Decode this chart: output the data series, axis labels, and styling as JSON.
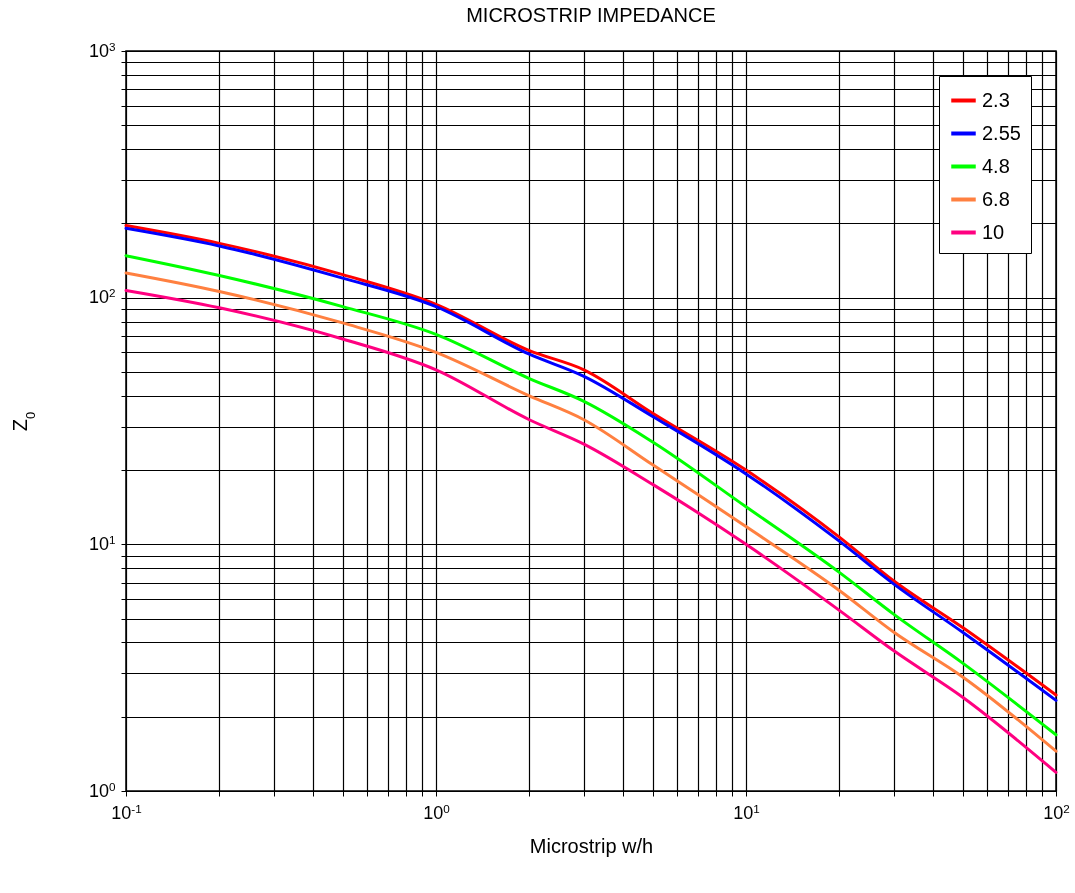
{
  "chart_data": {
    "type": "line",
    "title": "MICROSTRIP IMPEDANCE",
    "xlabel": "Microstrip w/h",
    "ylabel": "Z$_{0}$",
    "log": "xy",
    "grid": true,
    "legend": "top right",
    "marker": "none",
    "line_style": "solid",
    "xlim": [
      0.1,
      100
    ],
    "ylim": [
      1,
      1000
    ],
    "xticks": [
      {
        "value": 0.1,
        "label": "10$^{-1}$"
      },
      {
        "value": 0.2,
        "label": null
      },
      {
        "value": 0.3,
        "label": null
      },
      {
        "value": 0.4,
        "label": null
      },
      {
        "value": 0.5,
        "label": null
      },
      {
        "value": 0.6,
        "label": null
      },
      {
        "value": 0.7,
        "label": null
      },
      {
        "value": 0.8,
        "label": null
      },
      {
        "value": 0.9,
        "label": null
      },
      {
        "value": 1,
        "label": "10$^{0}$"
      },
      {
        "value": 2,
        "label": null
      },
      {
        "value": 3,
        "label": null
      },
      {
        "value": 4,
        "label": null
      },
      {
        "value": 5,
        "label": null
      },
      {
        "value": 6,
        "label": null
      },
      {
        "value": 7,
        "label": null
      },
      {
        "value": 8,
        "label": null
      },
      {
        "value": 9,
        "label": null
      },
      {
        "value": 10,
        "label": "10$^{1}$"
      },
      {
        "value": 20,
        "label": null
      },
      {
        "value": 30,
        "label": null
      },
      {
        "value": 40,
        "label": null
      },
      {
        "value": 50,
        "label": null
      },
      {
        "value": 60,
        "label": null
      },
      {
        "value": 70,
        "label": null
      },
      {
        "value": 80,
        "label": null
      },
      {
        "value": 90,
        "label": null
      },
      {
        "value": 100,
        "label": "10$^{2}$"
      }
    ],
    "yticks": [
      {
        "value": 1,
        "label": "10$^{0}$"
      },
      {
        "value": 2,
        "label": null
      },
      {
        "value": 3,
        "label": null
      },
      {
        "value": 4,
        "label": null
      },
      {
        "value": 5,
        "label": null
      },
      {
        "value": 6,
        "label": null
      },
      {
        "value": 7,
        "label": null
      },
      {
        "value": 8,
        "label": null
      },
      {
        "value": 9,
        "label": null
      },
      {
        "value": 10,
        "label": "10$^{1}$"
      },
      {
        "value": 20,
        "label": null
      },
      {
        "value": 30,
        "label": null
      },
      {
        "value": 40,
        "label": null
      },
      {
        "value": 50,
        "label": null
      },
      {
        "value": 60,
        "label": null
      },
      {
        "value": 70,
        "label": null
      },
      {
        "value": 80,
        "label": null
      },
      {
        "value": 90,
        "label": null
      },
      {
        "value": 100,
        "label": "10$^{2}$"
      },
      {
        "value": 200,
        "label": null
      },
      {
        "value": 300,
        "label": null
      },
      {
        "value": 400,
        "label": null
      },
      {
        "value": 500,
        "label": null
      },
      {
        "value": 600,
        "label": null
      },
      {
        "value": 700,
        "label": null
      },
      {
        "value": 800,
        "label": null
      },
      {
        "value": 900,
        "label": null
      },
      {
        "value": 1000,
        "label": "10$^{3}$"
      }
    ],
    "x": [
      0.1,
      0.2,
      0.5,
      1,
      2,
      3,
      5,
      10,
      20,
      30,
      50,
      100
    ],
    "series": [
      {
        "name": "2.3",
        "color": "#ff0000",
        "values": [
          196,
          166,
          124,
          94,
          61,
          51,
          34,
          20,
          10.7,
          7.1,
          4.6,
          2.45
        ]
      },
      {
        "name": "2.55",
        "color": "#0000ff",
        "values": [
          191,
          162,
          120,
          92,
          59,
          48,
          33,
          19.3,
          10.3,
          6.9,
          4.4,
          2.33
        ]
      },
      {
        "name": "4.8",
        "color": "#00ff00",
        "values": [
          148,
          123,
          92,
          71,
          47,
          38,
          26,
          14.2,
          7.7,
          5.2,
          3.3,
          1.69
        ]
      },
      {
        "name": "6.8",
        "color": "#ff8040",
        "values": [
          126,
          106,
          79,
          60,
          40,
          32,
          21,
          11.8,
          6.5,
          4.4,
          2.9,
          1.45
        ]
      },
      {
        "name": "10",
        "color": "#ff0080",
        "values": [
          107,
          91,
          68,
          51,
          32,
          25.5,
          17.5,
          10,
          5.4,
          3.7,
          2.4,
          1.19
        ]
      }
    ]
  }
}
